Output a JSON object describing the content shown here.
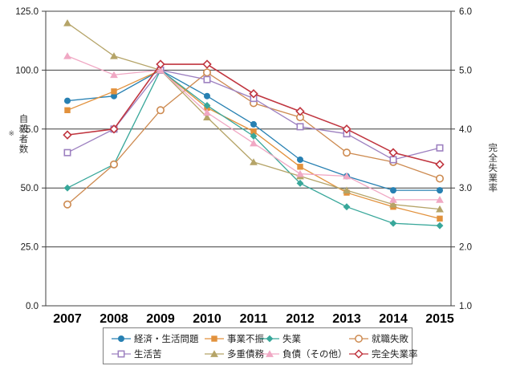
{
  "chart_data": {
    "type": "line",
    "title": "",
    "categories": [
      "2007",
      "2008",
      "2009",
      "2010",
      "2011",
      "2012",
      "2013",
      "2014",
      "2015"
    ],
    "left_axis": {
      "label": "自殺者数",
      "note": "※",
      "min": 0,
      "max": 125,
      "tick_labels": [
        "125.0",
        "100.0",
        "75.0",
        "50.0",
        "25.0",
        "0.0"
      ],
      "tick_values": [
        125,
        100,
        75,
        50,
        25,
        0
      ],
      "grid_values": [
        25,
        50,
        75,
        100
      ]
    },
    "right_axis": {
      "label": "完全失業率",
      "min": 1.0,
      "max": 6.0,
      "tick_labels": [
        "6.0",
        "5.0",
        "4.0",
        "3.0",
        "2.0",
        "1.0"
      ],
      "tick_values": [
        6.0,
        5.0,
        4.0,
        3.0,
        2.0,
        1.0
      ]
    },
    "legend_position": "bottom",
    "grid": "horizontal-only",
    "series": [
      {
        "id": "economy-life-problems",
        "name": "経済・生活問題",
        "axis": "left",
        "marker": "circle-filled",
        "color": "#2780b2",
        "values": [
          87,
          89,
          100,
          89,
          77,
          62,
          55,
          49,
          49
        ]
      },
      {
        "id": "business-slump",
        "name": "事業不振",
        "axis": "left",
        "marker": "square-filled",
        "color": "#e2913c",
        "values": [
          83,
          91,
          100,
          84,
          74,
          59,
          48,
          42,
          37
        ]
      },
      {
        "id": "unemployment",
        "name": "失業",
        "axis": "left",
        "marker": "diamond-filled",
        "color": "#38a79a",
        "values": [
          50,
          60,
          100,
          85,
          72,
          52,
          42,
          35,
          34
        ]
      },
      {
        "id": "job-hunting-failure",
        "name": "就職失敗",
        "axis": "left",
        "marker": "circle-open",
        "color": "#cd8a50",
        "values": [
          43,
          60,
          83,
          99,
          86,
          80,
          65,
          61,
          54
        ]
      },
      {
        "id": "life-hardship",
        "name": "生活苦",
        "axis": "left",
        "marker": "square-open",
        "color": "#9d80c0",
        "values": [
          65,
          75,
          100,
          96,
          88,
          76,
          73,
          62,
          67
        ]
      },
      {
        "id": "multiple-debts",
        "name": "多重債務",
        "axis": "left",
        "marker": "triangle-filled",
        "color": "#b5a468",
        "values": [
          120,
          106,
          100,
          80,
          61,
          55,
          49,
          43,
          41
        ]
      },
      {
        "id": "debts-other",
        "name": "負債（その他）",
        "axis": "left",
        "marker": "triangle-filled",
        "color": "#f0a8c4",
        "values": [
          106,
          98,
          100,
          82,
          69,
          56,
          55,
          45,
          45
        ]
      },
      {
        "id": "unemployment-rate",
        "name": "完全失業率",
        "axis": "right",
        "marker": "diamond-open",
        "color": "#c0353f",
        "values": [
          3.9,
          4.0,
          5.1,
          5.1,
          4.6,
          4.3,
          4.0,
          3.6,
          3.4
        ]
      }
    ],
    "colors": {
      "grid_line": "#3f3f3f",
      "plot_border": "#3f3f3f",
      "tick_text": "#1a1a1a",
      "year_text": "#000000",
      "legend_border": "#7f7f7f"
    }
  }
}
